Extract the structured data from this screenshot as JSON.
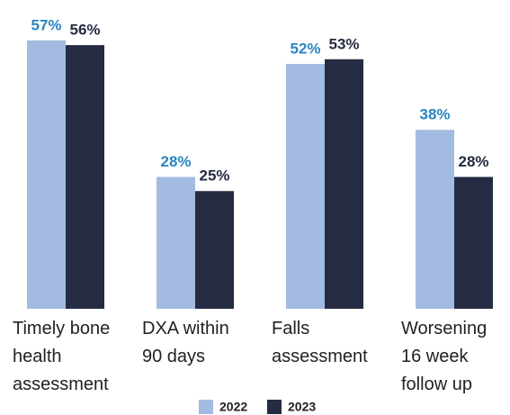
{
  "chart_data": {
    "type": "bar",
    "categories": [
      "Timely bone health assessment",
      "DXA within 90 days",
      "Falls assessment",
      "Worsening 16 week follow up"
    ],
    "series": [
      {
        "name": "2022",
        "color": "#a3bbe0",
        "label_color": "#2a86c0",
        "values": [
          57,
          28,
          52,
          38
        ],
        "value_labels": [
          "57%",
          "28%",
          "52%",
          "38%"
        ]
      },
      {
        "name": "2023",
        "color": "#252b42",
        "label_color": "#252b42",
        "values": [
          56,
          25,
          53,
          28
        ],
        "value_labels": [
          "56%",
          "25%",
          "53%",
          "28%"
        ]
      }
    ],
    "legend": "bottom"
  }
}
